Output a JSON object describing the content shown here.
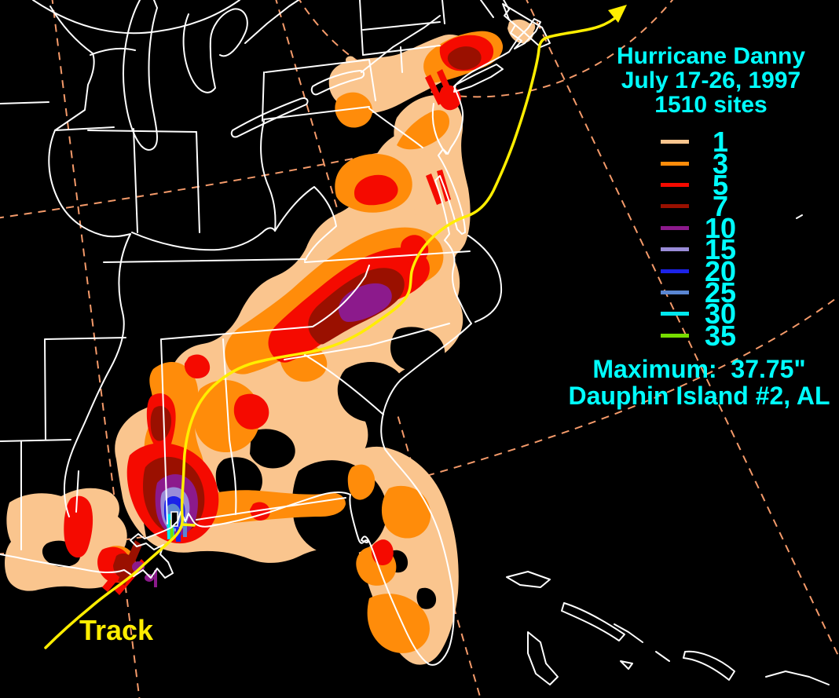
{
  "title": {
    "line1": "Hurricane Danny",
    "line2": "July 17-26, 1997",
    "line3": "1510 sites"
  },
  "legend": {
    "units": "inches",
    "items": [
      {
        "label": "1",
        "color": "#FAC58E"
      },
      {
        "label": "3",
        "color": "#FF8C0A"
      },
      {
        "label": "5",
        "color": "#F50A00"
      },
      {
        "label": "7",
        "color": "#9A1000"
      },
      {
        "label": "10",
        "color": "#8C1A8C"
      },
      {
        "label": "15",
        "color": "#9A8CD8"
      },
      {
        "label": "20",
        "color": "#1C23E8"
      },
      {
        "label": "25",
        "color": "#5A86D2"
      },
      {
        "label": "30",
        "color": "#00E8EE"
      },
      {
        "label": "35",
        "color": "#77DD00"
      }
    ]
  },
  "annotations": {
    "maximum_line1": "Maximum:  37.75\"",
    "maximum_line2": "Dauphin Island #2, AL",
    "track_label": "Track"
  },
  "storm": {
    "name": "Hurricane Danny",
    "dates": "July 17-26, 1997",
    "sites": "1510",
    "maximum_rainfall_inches": "37.75",
    "maximum_location": "Dauphin Island #2, AL"
  },
  "colors": {
    "background": "#000000",
    "state_borders": "#FFFFFF",
    "track": "#FFEE00",
    "grid_dash": "#F49A6A",
    "text": "#00FFFF"
  }
}
